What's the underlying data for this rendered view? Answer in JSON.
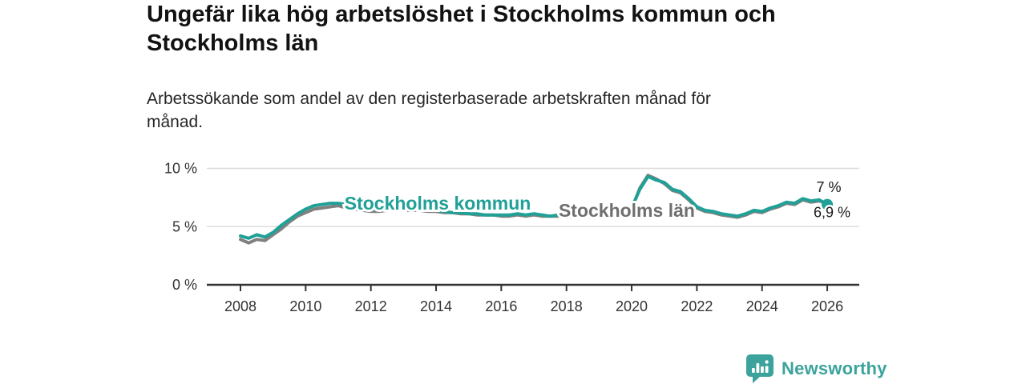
{
  "header": {
    "title": "Ungefär lika hög arbetslöshet i Stockholms kommun och Stockholms län",
    "title_lines": [
      "Ungefär lika hög arbetslöshet i Stockholms kommun och",
      "Stockholms län"
    ],
    "subtitle": "Arbetssökande som andel av den registerbaserade arbetskraften månad för månad.",
    "subtitle_lines": [
      "Arbetssökande som andel av den registerbaserade arbetskraften månad för",
      "månad."
    ]
  },
  "chart_data": {
    "type": "line",
    "title": "Ungefär lika hög arbetslöshet i Stockholms kommun och Stockholms län",
    "subtitle": "Arbetssökande som andel av den registerbaserade arbetskraften månad för månad.",
    "xlabel": "",
    "ylabel": "",
    "x_unit": "year",
    "x_start": 2008,
    "x_step": 0.25,
    "x_end": 2026,
    "xlim": [
      2007,
      2027
    ],
    "ylim": [
      0,
      10.5
    ],
    "grid": "horizontal",
    "legend": "inline-labels",
    "yticks": [
      {
        "value": 0,
        "label": "0 %"
      },
      {
        "value": 5,
        "label": "5 %"
      },
      {
        "value": 10,
        "label": "10 %"
      }
    ],
    "xticks": [
      {
        "value": 2008,
        "label": "2008"
      },
      {
        "value": 2010,
        "label": "2010"
      },
      {
        "value": 2012,
        "label": "2012"
      },
      {
        "value": 2014,
        "label": "2014"
      },
      {
        "value": 2016,
        "label": "2016"
      },
      {
        "value": 2018,
        "label": "2018"
      },
      {
        "value": 2020,
        "label": "2020"
      },
      {
        "value": 2022,
        "label": "2022"
      },
      {
        "value": 2024,
        "label": "2024"
      },
      {
        "value": 2026,
        "label": "2026"
      }
    ],
    "series": [
      {
        "name": "Stockholms kommun",
        "color": "#20a096",
        "end_label": "6,9 %",
        "end_label_position": "below",
        "end_value": 6.9,
        "inline_label_x": 2014.05,
        "inline_label_v": 7.08,
        "values": [
          4.2,
          4.0,
          4.3,
          4.1,
          4.5,
          5.1,
          5.6,
          6.1,
          6.5,
          6.8,
          6.9,
          7.0,
          7.0,
          6.9,
          6.8,
          6.6,
          6.5,
          6.5,
          6.6,
          6.6,
          6.6,
          6.6,
          6.5,
          6.5,
          6.4,
          6.3,
          6.2,
          6.2,
          6.1,
          6.1,
          6.0,
          6.0,
          6.0,
          6.0,
          6.1,
          6.0,
          6.1,
          6.0,
          5.9,
          6.0,
          6.0,
          6.0,
          6.0,
          6.0,
          6.1,
          6.1,
          6.2,
          6.4,
          6.6,
          8.2,
          9.3,
          9.0,
          8.8,
          8.2,
          8.0,
          7.4,
          6.7,
          6.4,
          6.3,
          6.1,
          6.0,
          5.9,
          6.1,
          6.4,
          6.3,
          6.6,
          6.8,
          7.1,
          7.0,
          7.4,
          7.2,
          7.3,
          6.9
        ]
      },
      {
        "name": "Stockholms län",
        "color": "#808080",
        "label_color": "#6f6f6f",
        "end_label": "7 %",
        "end_label_position": "above",
        "end_value": 7.0,
        "inline_label_x": 2019.85,
        "inline_label_v": 6.46,
        "values": [
          3.9,
          3.6,
          3.9,
          3.8,
          4.3,
          4.8,
          5.4,
          5.9,
          6.2,
          6.5,
          6.6,
          6.7,
          6.8,
          6.6,
          6.5,
          6.4,
          6.3,
          6.3,
          6.4,
          6.4,
          6.4,
          6.4,
          6.4,
          6.3,
          6.3,
          6.2,
          6.2,
          6.1,
          6.1,
          6.0,
          6.0,
          6.0,
          5.9,
          5.9,
          6.0,
          5.9,
          6.0,
          5.9,
          5.9,
          5.9,
          5.9,
          5.9,
          6.0,
          6.0,
          6.0,
          6.1,
          6.2,
          6.3,
          6.5,
          8.3,
          9.4,
          9.1,
          8.7,
          8.1,
          7.9,
          7.3,
          6.6,
          6.3,
          6.2,
          6.0,
          5.9,
          5.8,
          6.0,
          6.3,
          6.2,
          6.5,
          6.7,
          7.0,
          6.9,
          7.3,
          7.1,
          7.2,
          7.0
        ]
      }
    ],
    "colors": {
      "gridline": "#dcdcdc",
      "axis": "#333333",
      "tick_text": "#333333",
      "end_label_text": "#1a1a1a"
    }
  },
  "footer": {
    "brand": "Newsworthy",
    "logo_icon": "bar-chart-speech-bubble-icon",
    "brand_color": "#3ba39c"
  }
}
